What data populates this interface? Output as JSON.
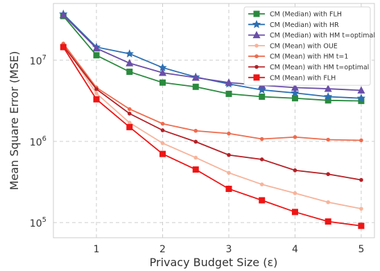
{
  "chart_data": {
    "type": "line",
    "xlabel": "Privacy Budget Size (ε)",
    "ylabel": "Mean Square Error (MSE)",
    "yscale": "log",
    "xlim": [
      0.35,
      5.2
    ],
    "ylim": [
      65000,
      50000000
    ],
    "grid": true,
    "legend_position": "top-right",
    "x": [
      0.5,
      1.0,
      1.5,
      2.0,
      2.5,
      3.0,
      3.5,
      4.0,
      4.5,
      5.0
    ],
    "xticks": [
      1,
      2,
      3,
      4,
      5
    ],
    "xtick_labels": [
      "1",
      "2",
      "3",
      "4",
      "5"
    ],
    "yticks": [
      100000,
      1000000,
      10000000
    ],
    "ytick_labels": [
      {
        "base": "10",
        "exp": "5"
      },
      {
        "base": "10",
        "exp": "6"
      },
      {
        "base": "10",
        "exp": "7"
      }
    ],
    "series": [
      {
        "name": "CM (Median) with FLH",
        "color": "#2a8a3e",
        "marker": "square",
        "values": [
          35000000,
          11500000,
          7200000,
          5300000,
          4700000,
          3850000,
          3550000,
          3400000,
          3200000,
          3150000
        ]
      },
      {
        "name": "CM (Median) with HR",
        "color": "#2c6fb3",
        "marker": "star",
        "values": [
          37000000,
          14500000,
          12000000,
          8100000,
          6200000,
          5100000,
          4300000,
          3950000,
          3550000,
          3400000
        ]
      },
      {
        "name": "CM (Median) with HM t=optimal",
        "color": "#6a4ea8",
        "marker": "triangle",
        "values": [
          36000000,
          14000000,
          9200000,
          7000000,
          6100000,
          5300000,
          4900000,
          4600000,
          4450000,
          4250000
        ]
      },
      {
        "name": "CM (Mean) with OUE",
        "color": "#f7b39a",
        "marker": "circle",
        "values": [
          16000000,
          3900000,
          1700000,
          950000,
          630000,
          410000,
          295000,
          230000,
          178000,
          148000
        ]
      },
      {
        "name": "CM (Mean) with HM t=1",
        "color": "#ee6b4d",
        "marker": "circle",
        "values": [
          16000000,
          4600000,
          2500000,
          1650000,
          1350000,
          1250000,
          1070000,
          1130000,
          1050000,
          1030000
        ]
      },
      {
        "name": "CM (Mean) with HM t=optimal",
        "color": "#b52025",
        "marker": "circle",
        "values": [
          15000000,
          4400000,
          2200000,
          1370000,
          990000,
          680000,
          600000,
          440000,
          395000,
          335000
        ]
      },
      {
        "name": "CM (Mean) with FLH",
        "color": "#ee1515",
        "marker": "square",
        "values": [
          14500000,
          3300000,
          1500000,
          700000,
          450000,
          260000,
          188000,
          135000,
          103000,
          91000
        ]
      }
    ]
  }
}
